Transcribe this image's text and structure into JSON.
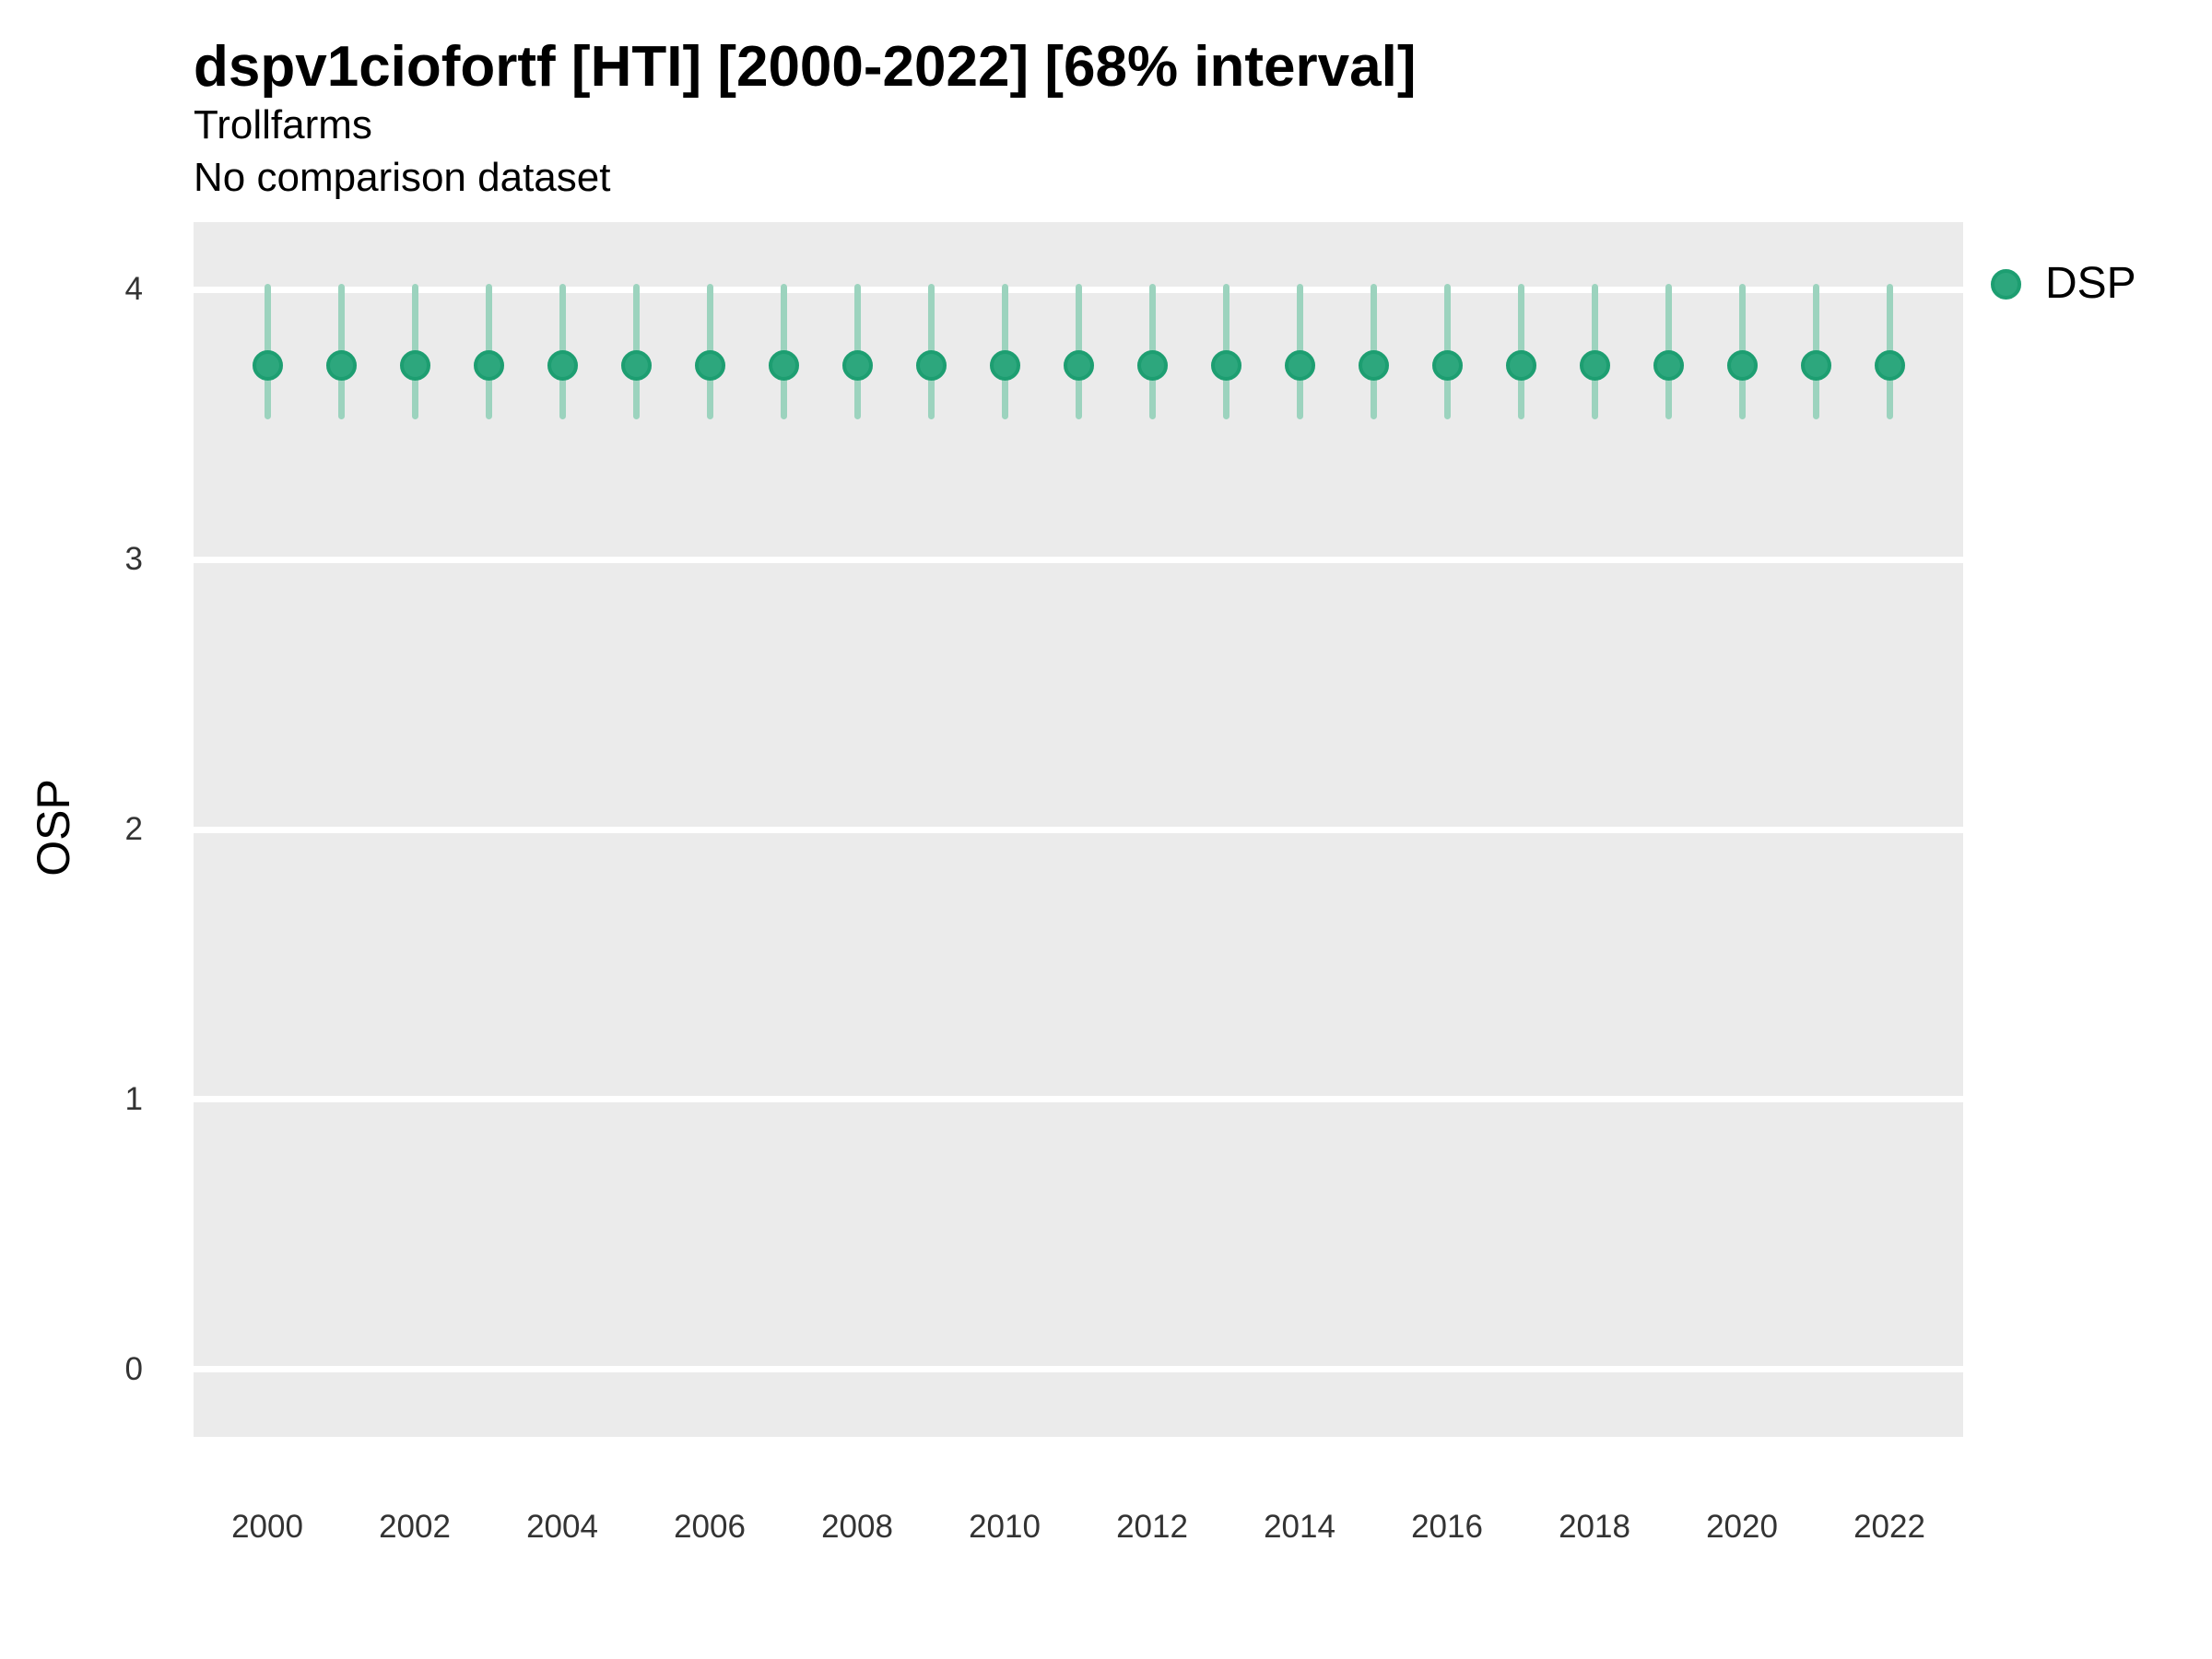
{
  "chart_data": {
    "type": "scatter",
    "title": "dspv1ciofortf [HTI] [2000-2022] [68% interval]",
    "subtitle": "Trollfarms",
    "note": "No comparison dataset",
    "xlabel": "",
    "ylabel": "OSP",
    "interval_label": "68% interval",
    "xlim": [
      1999,
      2023
    ],
    "ylim": [
      -0.25,
      4.25
    ],
    "xticks": [
      2000,
      2002,
      2004,
      2006,
      2008,
      2010,
      2012,
      2014,
      2016,
      2018,
      2020,
      2022
    ],
    "yticks": [
      0,
      1,
      2,
      3,
      4
    ],
    "grid": "horizontal-major-only",
    "legend_position": "right",
    "series": [
      {
        "name": "DSP",
        "x": [
          2000,
          2001,
          2002,
          2003,
          2004,
          2005,
          2006,
          2007,
          2008,
          2009,
          2010,
          2011,
          2012,
          2013,
          2014,
          2015,
          2016,
          2017,
          2018,
          2019,
          2020,
          2021,
          2022
        ],
        "y": [
          3.72,
          3.72,
          3.72,
          3.72,
          3.72,
          3.72,
          3.72,
          3.72,
          3.72,
          3.72,
          3.72,
          3.72,
          3.72,
          3.72,
          3.72,
          3.72,
          3.72,
          3.72,
          3.72,
          3.72,
          3.72,
          3.72,
          3.72
        ],
        "y_lo": [
          3.53,
          3.53,
          3.53,
          3.53,
          3.53,
          3.53,
          3.53,
          3.53,
          3.53,
          3.53,
          3.53,
          3.53,
          3.53,
          3.53,
          3.53,
          3.53,
          3.53,
          3.53,
          3.53,
          3.53,
          3.53,
          3.53,
          3.53
        ],
        "y_hi": [
          4.01,
          4.01,
          4.01,
          4.01,
          4.01,
          4.01,
          4.01,
          4.01,
          4.01,
          4.01,
          4.01,
          4.01,
          4.01,
          4.01,
          4.01,
          4.01,
          4.01,
          4.01,
          4.01,
          4.01,
          4.01,
          4.01,
          4.01
        ]
      }
    ],
    "colors": {
      "panel_bg": "#EBEBEB",
      "gridline": "#FFFFFF",
      "errorbar": "#9CD3BE",
      "point_fill": "#2DA77D",
      "point_stroke": "#1D9E71",
      "tick_text": "#333333",
      "text": "#000000"
    }
  },
  "legend": {
    "items": [
      {
        "label": "DSP"
      }
    ]
  }
}
